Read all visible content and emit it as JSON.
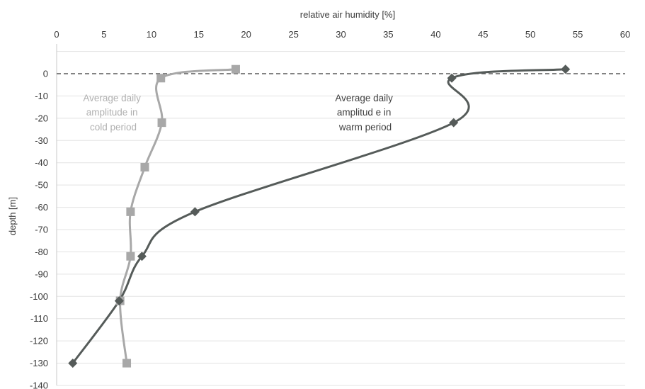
{
  "chart_data": {
    "type": "scatter",
    "title": "",
    "xlabel": "relative air humidity [%]",
    "ylabel": "depth [m]",
    "x_axis_position": "top",
    "xlim": [
      0,
      60
    ],
    "ylim": [
      -140,
      0
    ],
    "xticks": [
      "0",
      "5",
      "10",
      "15",
      "20",
      "25",
      "30",
      "35",
      "40",
      "45",
      "50",
      "55",
      "60"
    ],
    "yticks": [
      "0",
      "-10",
      "-20",
      "-30",
      "-40",
      "-50",
      "-60",
      "-70",
      "-80",
      "-90",
      "-100",
      "-110",
      "-120",
      "-130",
      "-140"
    ],
    "grid": true,
    "reference_line": {
      "y": 0,
      "style": "dashed"
    },
    "series": [
      {
        "name": "Average daily amplitude in cold period",
        "marker": "square",
        "color": "#a8a8a8",
        "points": [
          [
            18.9,
            2
          ],
          [
            11.0,
            -2
          ],
          [
            11.1,
            -22
          ],
          [
            9.3,
            -42
          ],
          [
            7.8,
            -62
          ],
          [
            7.8,
            -82
          ],
          [
            6.7,
            -102
          ],
          [
            7.4,
            -130
          ]
        ]
      },
      {
        "name": "Average daily amplitud e in warm period",
        "marker": "diamond",
        "color": "#555b59",
        "points": [
          [
            53.7,
            2
          ],
          [
            41.7,
            -2
          ],
          [
            41.9,
            -22
          ],
          [
            14.6,
            -62
          ],
          [
            9.0,
            -82
          ],
          [
            6.6,
            -102
          ],
          [
            1.7,
            -130
          ]
        ]
      }
    ],
    "annotations": [
      {
        "lines": [
          "Average daily",
          "amplitude in",
          "cold period"
        ],
        "color": "#b0b0b0"
      },
      {
        "lines": [
          "Average daily",
          "amplitud e in",
          "warm period"
        ],
        "color": "#3f3f3f"
      }
    ]
  }
}
